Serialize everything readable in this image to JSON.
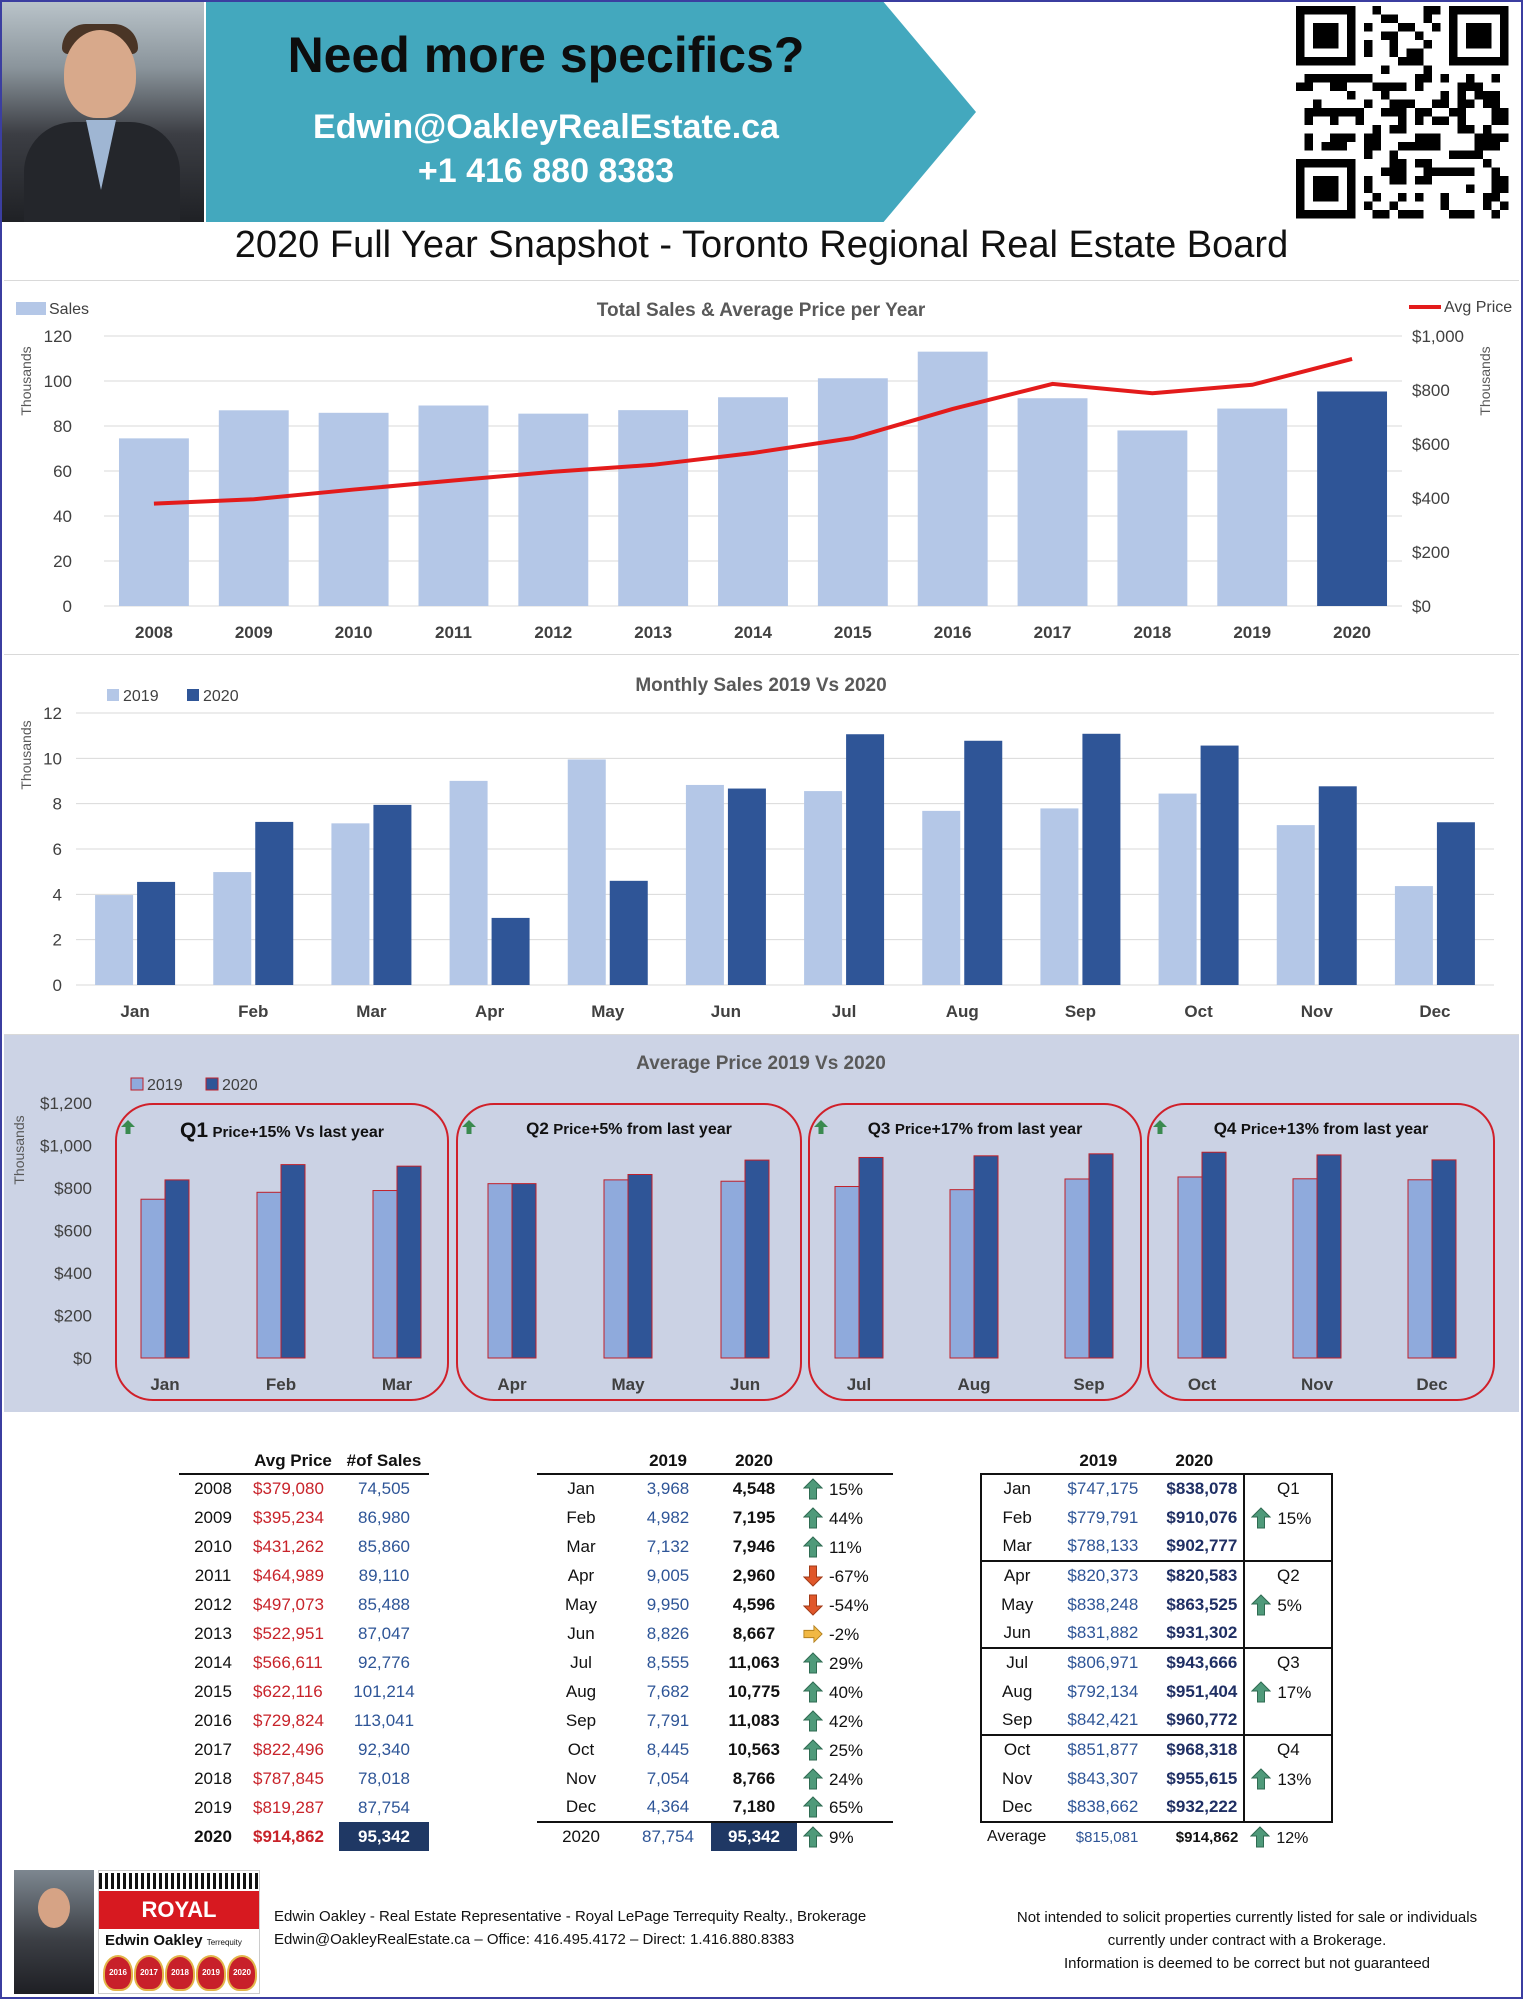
{
  "header": {
    "banner_title": "Need more specifics?",
    "email": "Edwin@OakleyRealEstate.ca",
    "phone": "+1 416 880 8383"
  },
  "main_title": "2020 Full Year Snapshot - Toronto Regional Real Estate Board",
  "chart_data": [
    {
      "type": "bar",
      "title": "Total Sales & Average Price per Year",
      "categories": [
        "2008",
        "2009",
        "2010",
        "2011",
        "2012",
        "2013",
        "2014",
        "2015",
        "2016",
        "2017",
        "2018",
        "2019",
        "2020"
      ],
      "series": [
        {
          "name": "Sales",
          "type": "bar",
          "axis": "left",
          "values": [
            74505,
            86980,
            85860,
            89110,
            85488,
            87047,
            92776,
            101214,
            113041,
            92340,
            78018,
            87754,
            95342
          ]
        },
        {
          "name": "Avg Price",
          "type": "line",
          "axis": "right",
          "values": [
            379080,
            395234,
            431262,
            464989,
            497073,
            522951,
            566611,
            622116,
            729824,
            822496,
            787845,
            819287,
            914862
          ]
        }
      ],
      "y_left": {
        "label": "Thousands",
        "ticks": [
          "0",
          "20",
          "40",
          "60",
          "80",
          "100",
          "120"
        ],
        "range": [
          0,
          120000
        ]
      },
      "y_right": {
        "label": "Thousands",
        "ticks": [
          "$0",
          "$200",
          "$400",
          "$600",
          "$800",
          "$1,000"
        ],
        "range": [
          0,
          1000000
        ]
      },
      "highlight": {
        "category": "2020",
        "color": "#2f5597"
      },
      "colors": {
        "bar": "#b4c7e7",
        "line": "#e31b1b"
      },
      "legend": {
        "left": "Sales",
        "right": "Avg Price"
      },
      "grid": true
    },
    {
      "type": "bar",
      "title": "Monthly Sales 2019 Vs 2020",
      "categories": [
        "Jan",
        "Feb",
        "Mar",
        "Apr",
        "May",
        "Jun",
        "Jul",
        "Aug",
        "Sep",
        "Oct",
        "Nov",
        "Dec"
      ],
      "series": [
        {
          "name": "2019",
          "values": [
            3968,
            4982,
            7132,
            9005,
            9950,
            8826,
            8555,
            7682,
            7791,
            8445,
            7054,
            4364
          ]
        },
        {
          "name": "2020",
          "values": [
            4548,
            7195,
            7946,
            2960,
            4596,
            8667,
            11063,
            10775,
            11083,
            10563,
            8766,
            7180
          ]
        }
      ],
      "y": {
        "label": "Thousands",
        "ticks": [
          "0",
          "2",
          "4",
          "6",
          "8",
          "10",
          "12"
        ],
        "range": [
          0,
          12000
        ]
      },
      "colors": {
        "2019": "#b4c7e7",
        "2020": "#2f5597"
      },
      "legend_position": "top-left",
      "grid": true
    },
    {
      "type": "bar",
      "title": "Average Price 2019 Vs 2020",
      "categories": [
        "Jan",
        "Feb",
        "Mar",
        "Apr",
        "May",
        "Jun",
        "Jul",
        "Aug",
        "Sep",
        "Oct",
        "Nov",
        "Dec"
      ],
      "series": [
        {
          "name": "2019",
          "values": [
            747175,
            779791,
            788133,
            820373,
            838248,
            831882,
            806971,
            792134,
            842421,
            851877,
            843307,
            838662
          ]
        },
        {
          "name": "2020",
          "values": [
            838078,
            910076,
            902777,
            820583,
            863525,
            931302,
            943666,
            951404,
            960772,
            968318,
            955615,
            932222
          ]
        }
      ],
      "y": {
        "label": "Thousands",
        "ticks": [
          "$0",
          "$200",
          "$400",
          "$600",
          "$800",
          "$1,000",
          "$1,200"
        ],
        "range": [
          0,
          1200000
        ]
      },
      "colors": {
        "2019": "#8faadc",
        "2020": "#2f5597",
        "outline": "#c0202a"
      },
      "legend_position": "top-left",
      "quarters": [
        {
          "q": "Q1",
          "price_word": "Price",
          "text": "+15% Vs last year"
        },
        {
          "q": "Q2",
          "price_word": "Price",
          "text": "+5% from last year"
        },
        {
          "q": "Q3",
          "price_word": "Price",
          "text": "+17% from last year"
        },
        {
          "q": "Q4",
          "price_word": "Price",
          "text": "+13% from last year"
        }
      ]
    }
  ],
  "annual_table": {
    "headers": [
      "",
      "Avg Price",
      "#of Sales"
    ],
    "rows": [
      [
        "2008",
        "$379,080",
        "74,505"
      ],
      [
        "2009",
        "$395,234",
        "86,980"
      ],
      [
        "2010",
        "$431,262",
        "85,860"
      ],
      [
        "2011",
        "$464,989",
        "89,110"
      ],
      [
        "2012",
        "$497,073",
        "85,488"
      ],
      [
        "2013",
        "$522,951",
        "87,047"
      ],
      [
        "2014",
        "$566,611",
        "92,776"
      ],
      [
        "2015",
        "$622,116",
        "101,214"
      ],
      [
        "2016",
        "$729,824",
        "113,041"
      ],
      [
        "2017",
        "$822,496",
        "92,340"
      ],
      [
        "2018",
        "$787,845",
        "78,018"
      ],
      [
        "2019",
        "$819,287",
        "87,754"
      ],
      [
        "2020",
        "$914,862",
        "95,342"
      ]
    ]
  },
  "monthly_sales_table": {
    "headers": [
      "",
      "2019",
      "2020",
      ""
    ],
    "rows": [
      {
        "m": "Jan",
        "v19": "3,968",
        "v20": "4,548",
        "dir": "up",
        "pct": "15%"
      },
      {
        "m": "Feb",
        "v19": "4,982",
        "v20": "7,195",
        "dir": "up",
        "pct": "44%"
      },
      {
        "m": "Mar",
        "v19": "7,132",
        "v20": "7,946",
        "dir": "up",
        "pct": "11%"
      },
      {
        "m": "Apr",
        "v19": "9,005",
        "v20": "2,960",
        "dir": "down",
        "pct": "-67%"
      },
      {
        "m": "May",
        "v19": "9,950",
        "v20": "4,596",
        "dir": "down",
        "pct": "-54%"
      },
      {
        "m": "Jun",
        "v19": "8,826",
        "v20": "8,667",
        "dir": "flat",
        "pct": "-2%"
      },
      {
        "m": "Jul",
        "v19": "8,555",
        "v20": "11,063",
        "dir": "up",
        "pct": "29%"
      },
      {
        "m": "Aug",
        "v19": "7,682",
        "v20": "10,775",
        "dir": "up",
        "pct": "40%"
      },
      {
        "m": "Sep",
        "v19": "7,791",
        "v20": "11,083",
        "dir": "up",
        "pct": "42%"
      },
      {
        "m": "Oct",
        "v19": "8,445",
        "v20": "10,563",
        "dir": "up",
        "pct": "25%"
      },
      {
        "m": "Nov",
        "v19": "7,054",
        "v20": "8,766",
        "dir": "up",
        "pct": "24%"
      },
      {
        "m": "Dec",
        "v19": "4,364",
        "v20": "7,180",
        "dir": "up",
        "pct": "65%"
      }
    ],
    "total": {
      "m": "2020",
      "v19": "87,754",
      "v20": "95,342",
      "dir": "up",
      "pct": "9%"
    }
  },
  "monthly_price_table": {
    "headers": [
      "",
      "2019",
      "2020",
      ""
    ],
    "quarters": [
      {
        "q": "Q1",
        "pct": "15%",
        "rows": [
          [
            "Jan",
            "$747,175",
            "$838,078"
          ],
          [
            "Feb",
            "$779,791",
            "$910,076"
          ],
          [
            "Mar",
            "$788,133",
            "$902,777"
          ]
        ]
      },
      {
        "q": "Q2",
        "pct": "5%",
        "rows": [
          [
            "Apr",
            "$820,373",
            "$820,583"
          ],
          [
            "May",
            "$838,248",
            "$863,525"
          ],
          [
            "Jun",
            "$831,882",
            "$931,302"
          ]
        ]
      },
      {
        "q": "Q3",
        "pct": "17%",
        "rows": [
          [
            "Jul",
            "$806,971",
            "$943,666"
          ],
          [
            "Aug",
            "$792,134",
            "$951,404"
          ],
          [
            "Sep",
            "$842,421",
            "$960,772"
          ]
        ]
      },
      {
        "q": "Q4",
        "pct": "13%",
        "rows": [
          [
            "Oct",
            "$851,877",
            "$968,318"
          ],
          [
            "Nov",
            "$843,307",
            "$955,615"
          ],
          [
            "Dec",
            "$838,662",
            "$932,222"
          ]
        ]
      }
    ],
    "average": {
      "label": "Average",
      "v19": "$815,081",
      "v20": "$914,862",
      "pct": "12%"
    }
  },
  "footer": {
    "brand": "ROYAL LEPAGE",
    "agent_name": "Edwin Oakley",
    "brokerage_small": "Terrequity Realty",
    "medal_years": [
      "2016",
      "2017",
      "2018",
      "2019",
      "2020"
    ],
    "line1": "Edwin Oakley - Real Estate Representative - Royal LePage Terrequity Realty., Brokerage",
    "line2": "Edwin@OakleyRealEstate.ca – Office: 416.495.4172 – Direct: 1.416.880.8383",
    "disclaimer1": "Not intended to solicit properties currently listed for sale or individuals",
    "disclaimer2": "currently under contract with a Brokerage.",
    "disclaimer3": "Information is deemed to be correct but not guaranteed"
  }
}
